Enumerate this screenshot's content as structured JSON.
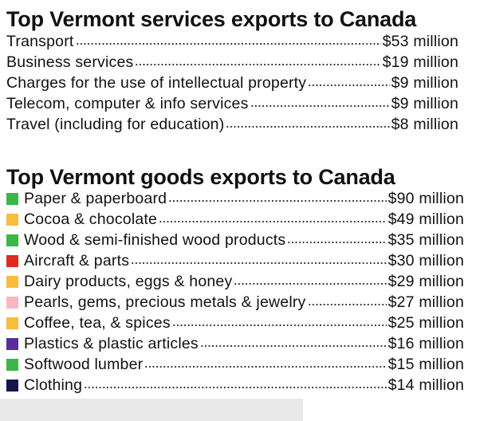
{
  "services": {
    "title": "Top Vermont services exports to Canada",
    "rows": [
      {
        "label": "Transport",
        "value": "$53 million"
      },
      {
        "label": "Business services",
        "value": "$19 million"
      },
      {
        "label": "Charges for the use of intellectual property",
        "value": "$9 million"
      },
      {
        "label": "Telecom, computer & info services",
        "value": "$9 million"
      },
      {
        "label": "Travel (including for education)",
        "value": "$8 million"
      }
    ]
  },
  "goods": {
    "title": "Top Vermont goods exports to Canada",
    "rows": [
      {
        "label": "Paper & paperboard",
        "value": "$90 million",
        "color": "#3cb54a"
      },
      {
        "label": "Cocoa & chocolate",
        "value": "$49 million",
        "color": "#f9bd3c"
      },
      {
        "label": "Wood & semi-finished wood products",
        "value": "$35 million",
        "color": "#3cb54a"
      },
      {
        "label": "Aircraft & parts",
        "value": "$30 million",
        "color": "#e02a22"
      },
      {
        "label": "Dairy products, eggs & honey",
        "value": "$29 million",
        "color": "#f9bd3c"
      },
      {
        "label": "Pearls, gems, precious metals & jewelry",
        "value": "$27 million",
        "color": "#f7b8c3"
      },
      {
        "label": "Coffee, tea, & spices",
        "value": "$25 million",
        "color": "#f9bd3c"
      },
      {
        "label": "Plastics & plastic articles",
        "value": "$16 million",
        "color": "#5a2d9c"
      },
      {
        "label": "Softwood lumber",
        "value": "$15 million",
        "color": "#3cb54a"
      },
      {
        "label": "Clothing",
        "value": "$14 million",
        "color": "#14154a"
      }
    ]
  }
}
